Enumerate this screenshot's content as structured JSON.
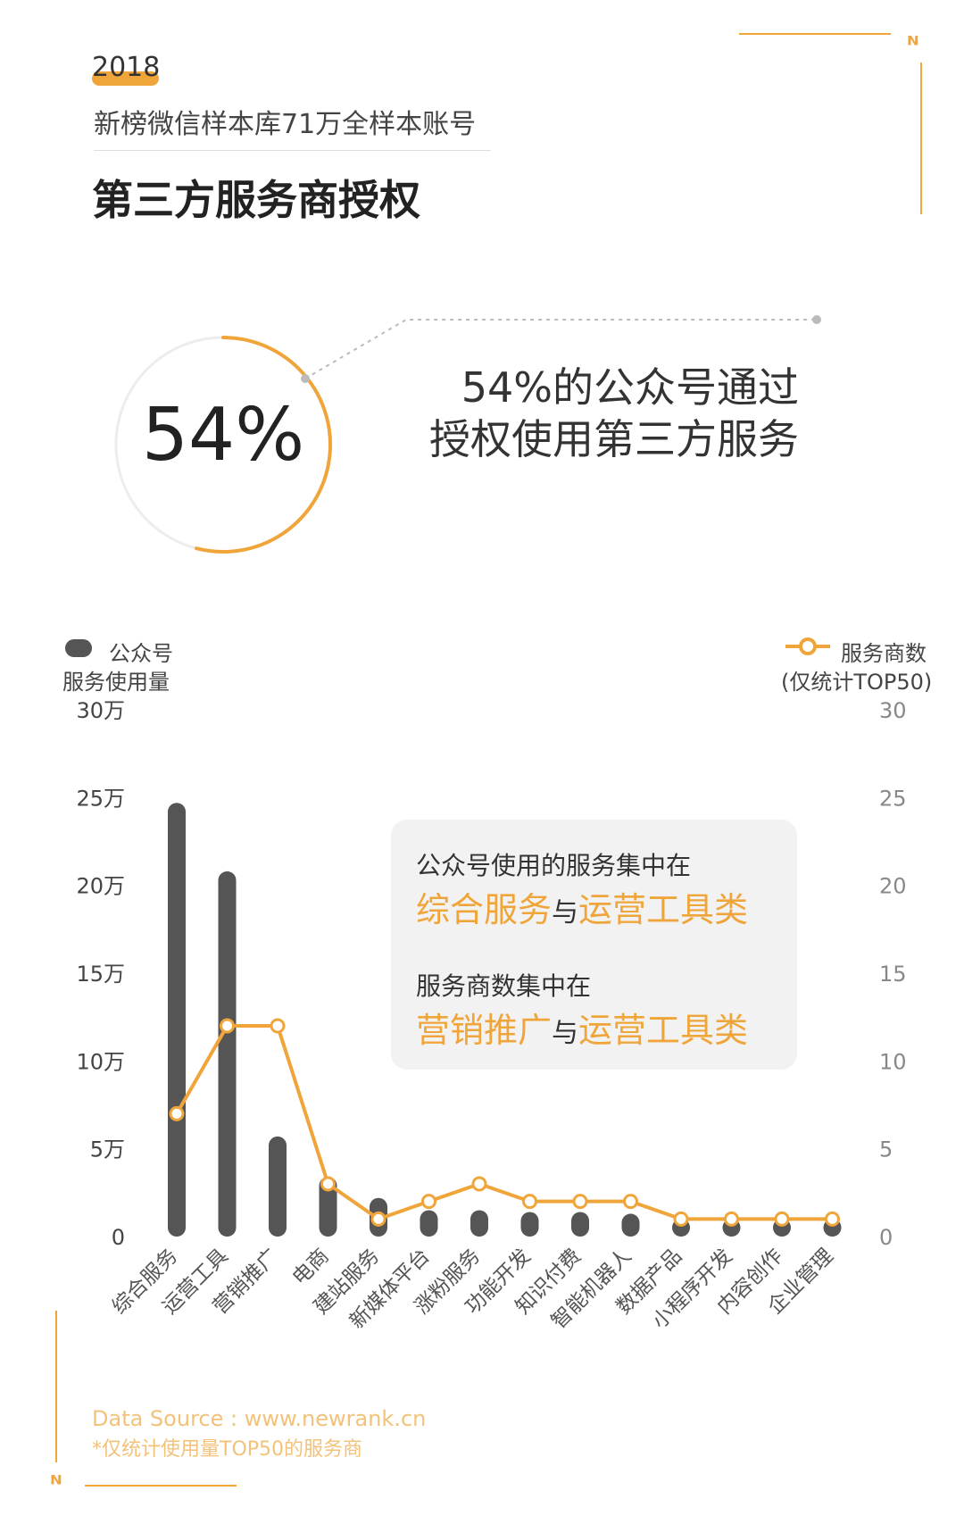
{
  "header": {
    "year": "2018",
    "subtitle": "新榜微信样本库71万全样本账号",
    "title": "第三方服务商授权"
  },
  "highlight": {
    "percent_label": "54%",
    "percent_value": 54,
    "line1": "54%的公众号通过",
    "line2": "授权使用第三方服务"
  },
  "legend": {
    "left_line1": "公众号",
    "left_line2": "服务使用量",
    "right_line1": "服务商数",
    "right_line2": "(仅统计TOP50)"
  },
  "callout": {
    "line1": "公众号使用的服务集中在",
    "line2_a": "综合服务",
    "line2_and": "与",
    "line2_b": "运营工具类",
    "line3": "服务商数集中在",
    "line4_a": "营销推广",
    "line4_and": "与",
    "line4_b": "运营工具类"
  },
  "footer": {
    "source": "Data Source : www.newrank.cn",
    "note": "*仅统计使用量TOP50的服务商"
  },
  "colors": {
    "accent": "#F0A53A",
    "bar": "#555555",
    "text": "#333333"
  },
  "chart_data": {
    "type": "bar",
    "categories": [
      "综合服务",
      "运营工具",
      "营销推广",
      "电商",
      "建站服务",
      "新媒体平台",
      "涨粉服务",
      "功能开发",
      "知识付费",
      "智能机器人",
      "数据产品",
      "小程序开发",
      "内容创作",
      "企业管理"
    ],
    "series": [
      {
        "name": "公众号服务使用量",
        "type": "bar",
        "axis": "left",
        "values": [
          24.7,
          20.8,
          5.7,
          3.4,
          2.2,
          1.5,
          1.5,
          1.4,
          1.4,
          1.3,
          0.9,
          0.9,
          0.9,
          0.9
        ]
      },
      {
        "name": "服务商数",
        "type": "line",
        "axis": "right",
        "values": [
          7,
          12,
          12,
          3,
          1,
          2,
          3,
          2,
          2,
          2,
          1,
          1,
          1,
          1
        ]
      }
    ],
    "left_axis": {
      "ticks": [
        "0",
        "5万",
        "10万",
        "15万",
        "20万",
        "25万",
        "30万"
      ],
      "range": [
        0,
        30
      ]
    },
    "right_axis": {
      "ticks": [
        "0",
        "5",
        "10",
        "15",
        "20",
        "25",
        "30"
      ],
      "range": [
        0,
        30
      ]
    },
    "grid": false
  }
}
